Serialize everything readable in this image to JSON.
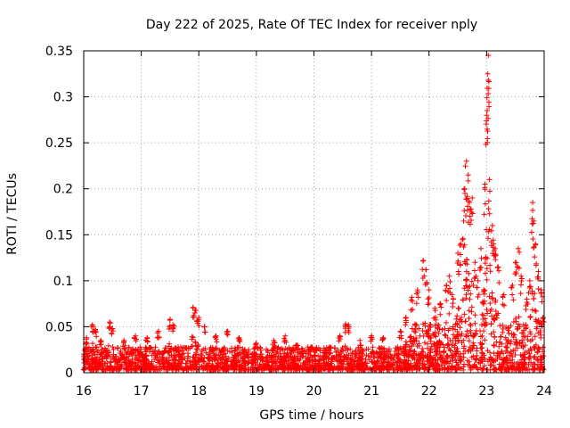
{
  "chart_data": {
    "type": "scatter",
    "title": "Day 222 of 2025, Rate Of TEC Index for receiver nply",
    "xlabel": "GPS time / hours",
    "ylabel": "ROTI / TECUs",
    "xlim": [
      16,
      24
    ],
    "ylim": [
      0,
      0.35
    ],
    "xticks": [
      16,
      17,
      18,
      19,
      20,
      21,
      22,
      23,
      24
    ],
    "yticks": [
      0,
      0.05,
      0.1,
      0.15,
      0.2,
      0.25,
      0.3,
      0.35
    ],
    "xtick_labels": [
      "16",
      "17",
      "18",
      "19",
      "20",
      "21",
      "22",
      "23",
      "24"
    ],
    "ytick_labels": [
      "0",
      "0.05",
      "0.1",
      "0.15",
      "0.2",
      "0.25",
      "0.3",
      "0.35"
    ],
    "grid": true,
    "marker": "+",
    "color": "#ff0000",
    "series": [
      {
        "name": "ROTI",
        "note": "dense background band of values ~0.005-0.03 across 16-24h; notable excursions listed",
        "points": [
          [
            16.05,
            0.038
          ],
          [
            16.15,
            0.052
          ],
          [
            16.2,
            0.047
          ],
          [
            16.3,
            0.035
          ],
          [
            16.45,
            0.055
          ],
          [
            16.5,
            0.048
          ],
          [
            16.7,
            0.035
          ],
          [
            16.9,
            0.04
          ],
          [
            17.1,
            0.038
          ],
          [
            17.3,
            0.045
          ],
          [
            17.5,
            0.058
          ],
          [
            17.55,
            0.052
          ],
          [
            17.9,
            0.071
          ],
          [
            17.95,
            0.068
          ],
          [
            18.0,
            0.06
          ],
          [
            18.1,
            0.05
          ],
          [
            18.3,
            0.04
          ],
          [
            18.5,
            0.045
          ],
          [
            18.7,
            0.038
          ],
          [
            19.0,
            0.032
          ],
          [
            19.3,
            0.035
          ],
          [
            19.5,
            0.04
          ],
          [
            19.7,
            0.03
          ],
          [
            19.95,
            0.028
          ],
          [
            20.2,
            0.025
          ],
          [
            20.45,
            0.04
          ],
          [
            20.55,
            0.053
          ],
          [
            20.6,
            0.052
          ],
          [
            20.8,
            0.035
          ],
          [
            21.0,
            0.04
          ],
          [
            21.2,
            0.038
          ],
          [
            21.5,
            0.045
          ],
          [
            21.6,
            0.06
          ],
          [
            21.7,
            0.082
          ],
          [
            21.8,
            0.09
          ],
          [
            21.9,
            0.122
          ],
          [
            21.95,
            0.112
          ],
          [
            22.0,
            0.09
          ],
          [
            22.1,
            0.07
          ],
          [
            22.2,
            0.075
          ],
          [
            22.3,
            0.095
          ],
          [
            22.35,
            0.105
          ],
          [
            22.4,
            0.085
          ],
          [
            22.5,
            0.13
          ],
          [
            22.55,
            0.14
          ],
          [
            22.6,
            0.165
          ],
          [
            22.62,
            0.2
          ],
          [
            22.65,
            0.23
          ],
          [
            22.68,
            0.215
          ],
          [
            22.7,
            0.185
          ],
          [
            22.75,
            0.19
          ],
          [
            22.8,
            0.12
          ],
          [
            22.85,
            0.1
          ],
          [
            22.9,
            0.135
          ],
          [
            22.95,
            0.09
          ],
          [
            22.97,
            0.205
          ],
          [
            23.0,
            0.28
          ],
          [
            23.01,
            0.285
          ],
          [
            23.02,
            0.325
          ],
          [
            23.03,
            0.345
          ],
          [
            23.05,
            0.21
          ],
          [
            23.1,
            0.16
          ],
          [
            23.12,
            0.14
          ],
          [
            23.15,
            0.135
          ],
          [
            23.2,
            0.115
          ],
          [
            23.3,
            0.085
          ],
          [
            23.45,
            0.095
          ],
          [
            23.5,
            0.12
          ],
          [
            23.55,
            0.135
          ],
          [
            23.6,
            0.105
          ],
          [
            23.7,
            0.08
          ],
          [
            23.75,
            0.1
          ],
          [
            23.8,
            0.185
          ],
          [
            23.82,
            0.165
          ],
          [
            23.85,
            0.14
          ],
          [
            23.9,
            0.11
          ],
          [
            23.95,
            0.09
          ],
          [
            23.98,
            0.06
          ]
        ]
      }
    ]
  }
}
